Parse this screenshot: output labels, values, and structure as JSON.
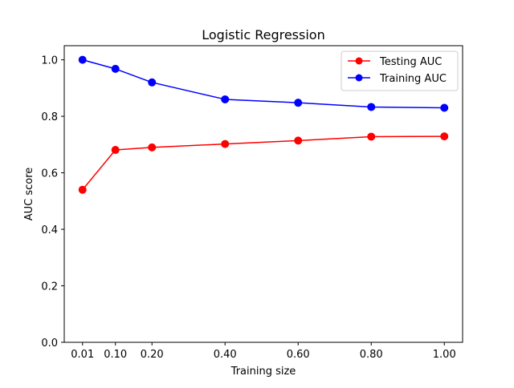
{
  "chart_data": {
    "type": "line",
    "title": "Logistic Regression",
    "xlabel": "Training size",
    "ylabel": "AUC score",
    "x": [
      0.01,
      0.1,
      0.2,
      0.4,
      0.6,
      0.8,
      1.0
    ],
    "x_tick_labels": [
      "0.01",
      "0.10",
      "0.20",
      "0.40",
      "0.60",
      "0.80",
      "1.00"
    ],
    "y_ticks": [
      0.0,
      0.2,
      0.4,
      0.6,
      0.8,
      1.0
    ],
    "y_tick_labels": [
      "0.0",
      "0.2",
      "0.4",
      "0.6",
      "0.8",
      "1.0"
    ],
    "xlim": [
      -0.04,
      1.05
    ],
    "ylim": [
      0.0,
      1.05
    ],
    "grid": false,
    "legend_position": "top-right",
    "series": [
      {
        "name": "Testing AUC",
        "color": "#ff0000",
        "marker": "circle",
        "values": [
          0.54,
          0.681,
          0.69,
          0.702,
          0.714,
          0.728,
          0.729
        ]
      },
      {
        "name": "Training AUC",
        "color": "#0000ff",
        "marker": "circle",
        "values": [
          1.0,
          0.968,
          0.92,
          0.86,
          0.848,
          0.833,
          0.83
        ]
      }
    ]
  }
}
